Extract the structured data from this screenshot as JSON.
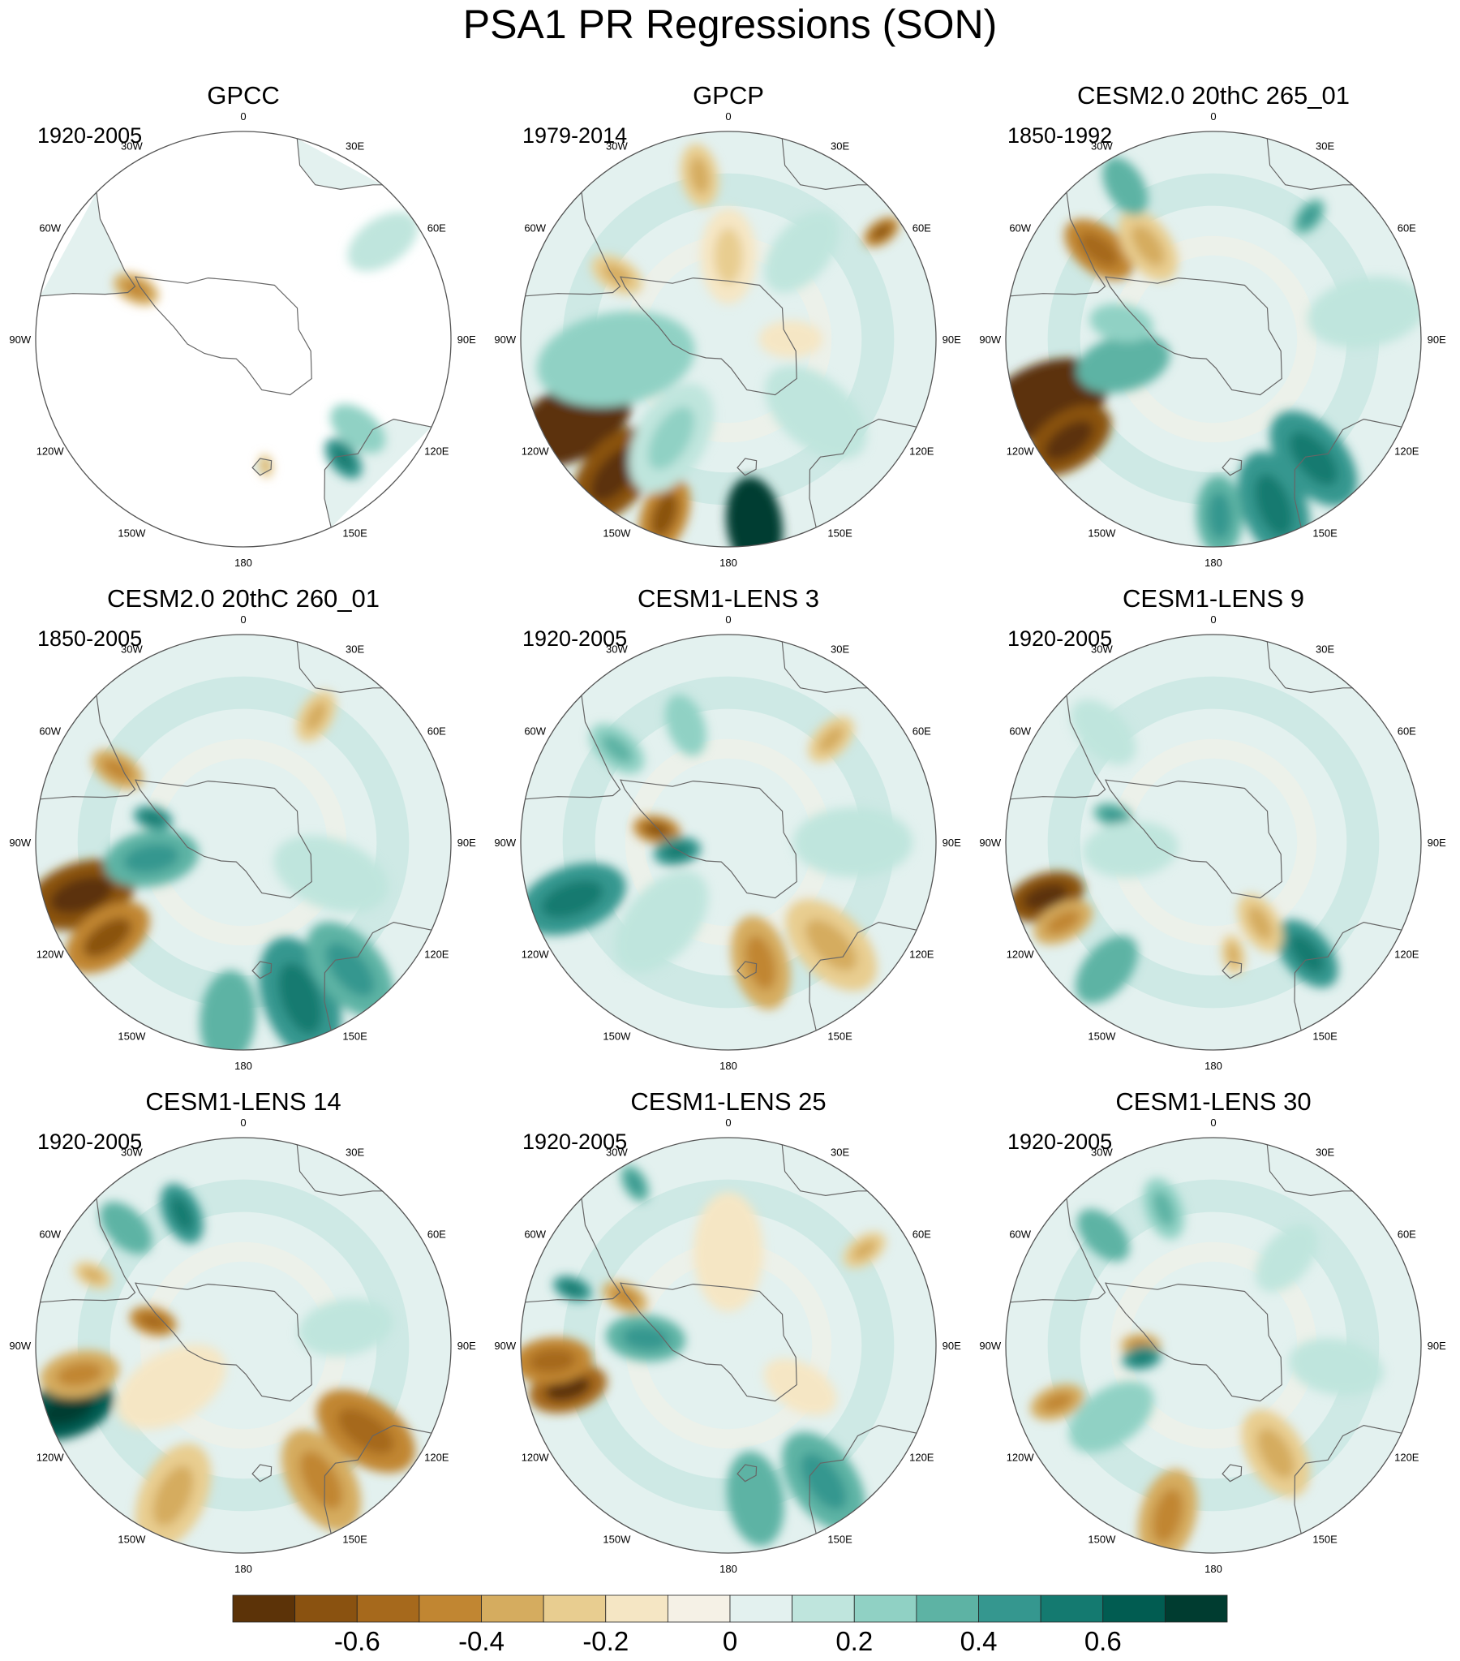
{
  "title": "PSA1 PR Regressions (SON)",
  "panels": [
    {
      "name": "GPCC",
      "period": "1920-2005",
      "coverage": "land-only",
      "features": [
        {
          "lon": -65,
          "r": 0.57,
          "v": -0.35,
          "s": 0.06
        },
        {
          "lon": 55,
          "r": 0.82,
          "v": 0.12,
          "s": 0.1
        },
        {
          "lon": 140,
          "r": 0.75,
          "v": 0.45,
          "s": 0.06
        },
        {
          "lon": 128,
          "r": 0.7,
          "v": 0.2,
          "s": 0.08
        },
        {
          "lon": 170,
          "r": 0.62,
          "v": -0.3,
          "s": 0.03
        }
      ]
    },
    {
      "name": "GPCP",
      "period": "1979-2014",
      "coverage": "full",
      "features": [
        {
          "lon": -118,
          "r": 0.85,
          "v": -0.85,
          "s": 0.16
        },
        {
          "lon": -140,
          "r": 0.85,
          "v": -0.65,
          "s": 0.14
        },
        {
          "lon": -160,
          "r": 0.9,
          "v": -0.5,
          "s": 0.1
        },
        {
          "lon": 172,
          "r": 0.9,
          "v": 0.75,
          "s": 0.12
        },
        {
          "lon": -100,
          "r": 0.55,
          "v": 0.2,
          "s": 0.2
        },
        {
          "lon": 0,
          "r": 0.4,
          "v": -0.2,
          "s": 0.12
        },
        {
          "lon": -10,
          "r": 0.8,
          "v": -0.25,
          "s": 0.08
        },
        {
          "lon": 55,
          "r": 0.9,
          "v": -0.5,
          "s": 0.05
        },
        {
          "lon": -60,
          "r": 0.62,
          "v": -0.25,
          "s": 0.07
        },
        {
          "lon": 90,
          "r": 0.3,
          "v": -0.15,
          "s": 0.08
        },
        {
          "lon": 130,
          "r": 0.55,
          "v": 0.12,
          "s": 0.15
        },
        {
          "lon": -150,
          "r": 0.55,
          "v": 0.18,
          "s": 0.15
        },
        {
          "lon": 40,
          "r": 0.55,
          "v": 0.15,
          "s": 0.12
        }
      ]
    },
    {
      "name": "CESM2.0 20thC 265_01",
      "period": "1850-1992",
      "coverage": "full",
      "features": [
        {
          "lon": -110,
          "r": 0.85,
          "v": -0.8,
          "s": 0.16
        },
        {
          "lon": -125,
          "r": 0.85,
          "v": -0.65,
          "s": 0.12
        },
        {
          "lon": -52,
          "r": 0.7,
          "v": -0.45,
          "s": 0.1
        },
        {
          "lon": -35,
          "r": 0.55,
          "v": -0.25,
          "s": 0.1
        },
        {
          "lon": 160,
          "r": 0.85,
          "v": 0.45,
          "s": 0.14
        },
        {
          "lon": 140,
          "r": 0.75,
          "v": 0.4,
          "s": 0.14
        },
        {
          "lon": 178,
          "r": 0.85,
          "v": 0.35,
          "s": 0.1
        },
        {
          "lon": -105,
          "r": 0.45,
          "v": 0.3,
          "s": 0.12
        },
        {
          "lon": -30,
          "r": 0.85,
          "v": 0.3,
          "s": 0.08
        },
        {
          "lon": 38,
          "r": 0.75,
          "v": 0.35,
          "s": 0.05
        },
        {
          "lon": -80,
          "r": 0.45,
          "v": 0.2,
          "s": 0.08
        },
        {
          "lon": 80,
          "r": 0.75,
          "v": 0.12,
          "s": 0.15
        }
      ]
    },
    {
      "name": "CESM2.0 20thC 260_01",
      "period": "1850-2005",
      "coverage": "full",
      "features": [
        {
          "lon": -108,
          "r": 0.82,
          "v": -0.65,
          "s": 0.14
        },
        {
          "lon": -125,
          "r": 0.8,
          "v": -0.5,
          "s": 0.12
        },
        {
          "lon": -60,
          "r": 0.7,
          "v": -0.35,
          "s": 0.07
        },
        {
          "lon": 160,
          "r": 0.8,
          "v": 0.45,
          "s": 0.16
        },
        {
          "lon": 140,
          "r": 0.8,
          "v": 0.35,
          "s": 0.14
        },
        {
          "lon": -175,
          "r": 0.85,
          "v": 0.3,
          "s": 0.12
        },
        {
          "lon": -100,
          "r": 0.45,
          "v": 0.35,
          "s": 0.12
        },
        {
          "lon": -75,
          "r": 0.45,
          "v": 0.45,
          "s": 0.05
        },
        {
          "lon": 30,
          "r": 0.7,
          "v": -0.25,
          "s": 0.07
        },
        {
          "lon": 110,
          "r": 0.45,
          "v": 0.15,
          "s": 0.15
        }
      ]
    },
    {
      "name": "CESM1-LENS 3",
      "period": "1920-2005",
      "coverage": "full",
      "features": [
        {
          "lon": -110,
          "r": 0.8,
          "v": 0.4,
          "s": 0.14
        },
        {
          "lon": -80,
          "r": 0.35,
          "v": -0.5,
          "s": 0.06
        },
        {
          "lon": -100,
          "r": 0.25,
          "v": 0.4,
          "s": 0.06
        },
        {
          "lon": 165,
          "r": 0.6,
          "v": -0.35,
          "s": 0.12
        },
        {
          "lon": 135,
          "r": 0.7,
          "v": -0.25,
          "s": 0.14
        },
        {
          "lon": -50,
          "r": 0.7,
          "v": 0.25,
          "s": 0.08
        },
        {
          "lon": -20,
          "r": 0.6,
          "v": 0.2,
          "s": 0.08
        },
        {
          "lon": 45,
          "r": 0.7,
          "v": -0.25,
          "s": 0.07
        },
        {
          "lon": -140,
          "r": 0.5,
          "v": 0.12,
          "s": 0.15
        },
        {
          "lon": 90,
          "r": 0.6,
          "v": 0.12,
          "s": 0.15
        }
      ]
    },
    {
      "name": "CESM1-LENS 9",
      "period": "1920-2005",
      "coverage": "full",
      "features": [
        {
          "lon": -108,
          "r": 0.85,
          "v": -0.65,
          "s": 0.1
        },
        {
          "lon": -118,
          "r": 0.82,
          "v": -0.4,
          "s": 0.08
        },
        {
          "lon": 140,
          "r": 0.7,
          "v": 0.4,
          "s": 0.1
        },
        {
          "lon": -140,
          "r": 0.8,
          "v": 0.3,
          "s": 0.1
        },
        {
          "lon": 170,
          "r": 0.55,
          "v": -0.3,
          "s": 0.05
        },
        {
          "lon": 150,
          "r": 0.45,
          "v": -0.25,
          "s": 0.08
        },
        {
          "lon": -75,
          "r": 0.5,
          "v": 0.35,
          "s": 0.05
        },
        {
          "lon": -95,
          "r": 0.4,
          "v": 0.15,
          "s": 0.12
        },
        {
          "lon": -45,
          "r": 0.75,
          "v": 0.15,
          "s": 0.1
        }
      ]
    },
    {
      "name": "CESM1-LENS 14",
      "period": "1920-2005",
      "coverage": "full",
      "features": [
        {
          "lon": -110,
          "r": 0.9,
          "v": 0.65,
          "s": 0.12
        },
        {
          "lon": -100,
          "r": 0.8,
          "v": -0.35,
          "s": 0.1
        },
        {
          "lon": 125,
          "r": 0.72,
          "v": -0.45,
          "s": 0.14
        },
        {
          "lon": 150,
          "r": 0.75,
          "v": -0.4,
          "s": 0.14
        },
        {
          "lon": -155,
          "r": 0.8,
          "v": -0.3,
          "s": 0.14
        },
        {
          "lon": -25,
          "r": 0.7,
          "v": 0.4,
          "s": 0.08
        },
        {
          "lon": -45,
          "r": 0.8,
          "v": 0.3,
          "s": 0.08
        },
        {
          "lon": -75,
          "r": 0.45,
          "v": -0.45,
          "s": 0.06
        },
        {
          "lon": -65,
          "r": 0.8,
          "v": -0.3,
          "s": 0.05
        },
        {
          "lon": 80,
          "r": 0.5,
          "v": 0.15,
          "s": 0.12
        },
        {
          "lon": -120,
          "r": 0.4,
          "v": -0.15,
          "s": 0.15
        }
      ]
    },
    {
      "name": "CESM1-LENS 25",
      "period": "1920-2005",
      "coverage": "full",
      "features": [
        {
          "lon": -105,
          "r": 0.8,
          "v": -0.6,
          "s": 0.1
        },
        {
          "lon": -95,
          "r": 0.85,
          "v": -0.45,
          "s": 0.1
        },
        {
          "lon": -85,
          "r": 0.4,
          "v": 0.35,
          "s": 0.1
        },
        {
          "lon": 145,
          "r": 0.8,
          "v": 0.35,
          "s": 0.14
        },
        {
          "lon": 170,
          "r": 0.75,
          "v": 0.3,
          "s": 0.12
        },
        {
          "lon": -70,
          "r": 0.8,
          "v": 0.4,
          "s": 0.05
        },
        {
          "lon": -30,
          "r": 0.9,
          "v": 0.35,
          "s": 0.05
        },
        {
          "lon": -65,
          "r": 0.55,
          "v": -0.35,
          "s": 0.06
        },
        {
          "lon": 55,
          "r": 0.8,
          "v": -0.25,
          "s": 0.06
        },
        {
          "lon": 120,
          "r": 0.4,
          "v": -0.15,
          "s": 0.1
        },
        {
          "lon": 0,
          "r": 0.45,
          "v": -0.12,
          "s": 0.15
        }
      ]
    },
    {
      "name": "CESM1-LENS 30",
      "period": "1920-2005",
      "coverage": "full",
      "features": [
        {
          "lon": -165,
          "r": 0.85,
          "v": -0.35,
          "s": 0.12
        },
        {
          "lon": -110,
          "r": 0.8,
          "v": -0.35,
          "s": 0.07
        },
        {
          "lon": 150,
          "r": 0.6,
          "v": -0.25,
          "s": 0.12
        },
        {
          "lon": -45,
          "r": 0.75,
          "v": 0.3,
          "s": 0.08
        },
        {
          "lon": -20,
          "r": 0.7,
          "v": 0.25,
          "s": 0.08
        },
        {
          "lon": -90,
          "r": 0.35,
          "v": -0.4,
          "s": 0.05
        },
        {
          "lon": -100,
          "r": 0.35,
          "v": 0.4,
          "s": 0.05
        },
        {
          "lon": -125,
          "r": 0.6,
          "v": 0.2,
          "s": 0.12
        },
        {
          "lon": 100,
          "r": 0.6,
          "v": 0.12,
          "s": 0.12
        },
        {
          "lon": 40,
          "r": 0.55,
          "v": 0.12,
          "s": 0.1
        }
      ]
    }
  ],
  "lon_labels": [
    "0",
    "30E",
    "60E",
    "90E",
    "120E",
    "150E",
    "180",
    "150W",
    "120W",
    "90W",
    "60W",
    "30W"
  ],
  "colorbar": {
    "colors": [
      "#5c3308",
      "#8a5210",
      "#a6691c",
      "#c18632",
      "#d5ac5f",
      "#e8cd90",
      "#f5e6c4",
      "#f5f1e6",
      "#e3f1ef",
      "#bfe5dd",
      "#90d1c4",
      "#5db3a4",
      "#35978f",
      "#147a70",
      "#015c51",
      "#003c30"
    ],
    "tick_labels": [
      "-0.6",
      "-0.4",
      "-0.2",
      "0",
      "0.2",
      "0.4",
      "0.6"
    ],
    "range": [
      -0.8,
      0.8
    ]
  }
}
